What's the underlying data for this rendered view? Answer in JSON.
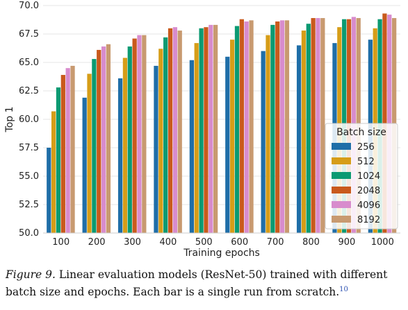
{
  "chart_data": {
    "type": "bar",
    "categories": [
      "100",
      "200",
      "300",
      "400",
      "500",
      "600",
      "700",
      "800",
      "900",
      "1000"
    ],
    "xlabel": "Training epochs",
    "ylabel": "Top 1",
    "ylim": [
      50.0,
      70.0
    ],
    "yticks": [
      "50.0",
      "52.5",
      "55.0",
      "57.5",
      "60.0",
      "62.5",
      "65.0",
      "67.5",
      "70.0"
    ],
    "grid": "y",
    "legend": {
      "title": "Batch size",
      "position": "bottom-right"
    },
    "series": [
      {
        "name": "256",
        "color": "#1f6ea8",
        "values": [
          57.5,
          61.9,
          63.6,
          64.7,
          65.2,
          65.5,
          66.0,
          66.5,
          66.7,
          67.0
        ]
      },
      {
        "name": "512",
        "color": "#d69d18",
        "values": [
          60.7,
          64.0,
          65.4,
          66.2,
          66.7,
          67.0,
          67.4,
          67.8,
          68.1,
          68.0
        ]
      },
      {
        "name": "1024",
        "color": "#0b9a72",
        "values": [
          62.8,
          65.3,
          66.4,
          67.2,
          68.0,
          68.2,
          68.3,
          68.4,
          68.8,
          68.8
        ]
      },
      {
        "name": "2048",
        "color": "#c95a1c",
        "values": [
          63.9,
          66.1,
          67.1,
          68.0,
          68.1,
          68.8,
          68.6,
          68.9,
          68.8,
          69.3
        ]
      },
      {
        "name": "4096",
        "color": "#d88ccd",
        "values": [
          64.5,
          66.4,
          67.4,
          68.1,
          68.3,
          68.6,
          68.7,
          68.9,
          69.0,
          69.2
        ]
      },
      {
        "name": "8192",
        "color": "#c89a70",
        "values": [
          64.7,
          66.6,
          67.4,
          67.8,
          68.3,
          68.7,
          68.7,
          68.9,
          68.9,
          68.9
        ]
      }
    ]
  },
  "caption": {
    "label": "Figure 9.",
    "text": " Linear evaluation models (ResNet-50) trained with different batch size and epochs. Each bar is a single run from scratch.",
    "footnote": "10"
  }
}
